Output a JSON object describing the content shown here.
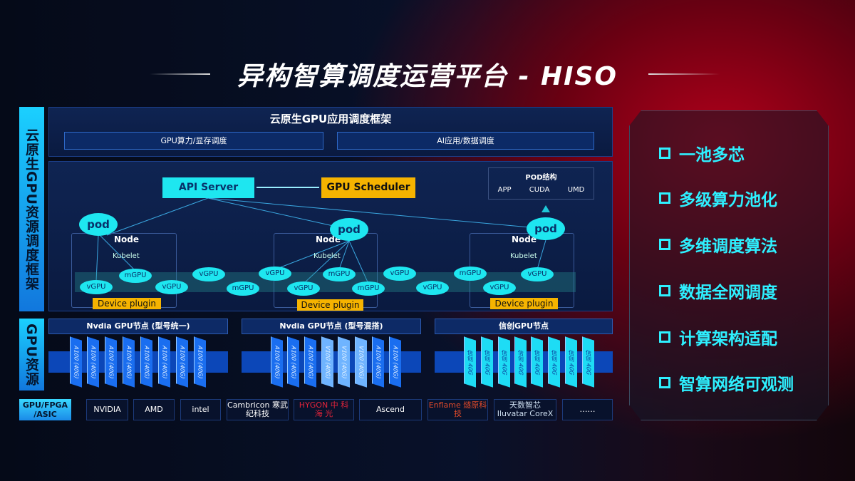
{
  "title": "异构智算调度运营平台 - HISO",
  "left_labels": {
    "framework": "云原生GPU资源调度框架",
    "resources": "GPU资源"
  },
  "framework": {
    "heading": "云原生GPU应用调度框架",
    "sub_bars": [
      "GPU算力/显存调度",
      "AI应用/数据调度"
    ]
  },
  "scheduler": {
    "api_server": "API Server",
    "gpu_scheduler": "GPU Scheduler",
    "pod_structure": {
      "title": "POD结构",
      "items": [
        "APP",
        "CUDA",
        "UMD"
      ]
    },
    "pod": "pod",
    "node": "Node",
    "kubelet": "Kubelet",
    "device_plugin": "Device plugin",
    "gpus": [
      "vGPU",
      "mGPU",
      "vGPU",
      "vGPU",
      "mGPU",
      "vGPU",
      "vGPU",
      "mGPU",
      "mGPU",
      "vGPU",
      "vGPU",
      "mGPU",
      "vGPU",
      "vGPU"
    ]
  },
  "gpu_nodes": [
    {
      "title": "Nvdia GPU节点 (型号统一)",
      "chips": [
        "A100 (40G)",
        "A100 (40G)",
        "A100 (40G)",
        "A100 (40G)",
        "A100 (40G)",
        "A100 (40G)",
        "A100 (40G)",
        "A100 (40G)"
      ]
    },
    {
      "title": "Nvdia GPU节点 (型号混搭)",
      "chips": [
        "A100 (40G)",
        "A100 (40G)",
        "A100 (40G)",
        "V100 (40G)",
        "V100 (40G)",
        "V100 (40G)",
        "A100 (40G)",
        "A100 (40G)"
      ]
    },
    {
      "title": "信创GPU节点",
      "chips": [
        "信创 40G",
        "信创 40G",
        "信创 40G",
        "信创 40G",
        "信创 40G",
        "信创 40G",
        "信创 40G",
        "信创 40G"
      ]
    }
  ],
  "vendors": {
    "label": "GPU/FPGA /ASIC",
    "items": [
      "NVIDIA",
      "AMD",
      "intel",
      "Cambricon 寒武纪科技",
      "HYGON 中 科 海 光",
      "Ascend",
      "Enflame 燧原科技",
      "天数智芯 Iluvatar CoreX",
      "……"
    ]
  },
  "features": [
    "一池多芯",
    "多级算力池化",
    "多维调度算法",
    "数据全网调度",
    "计算架构适配",
    "智算网络可观测"
  ],
  "colors": {
    "cyan": "#1ee6f0",
    "orange": "#f5b300",
    "blue": "#1177dd"
  }
}
